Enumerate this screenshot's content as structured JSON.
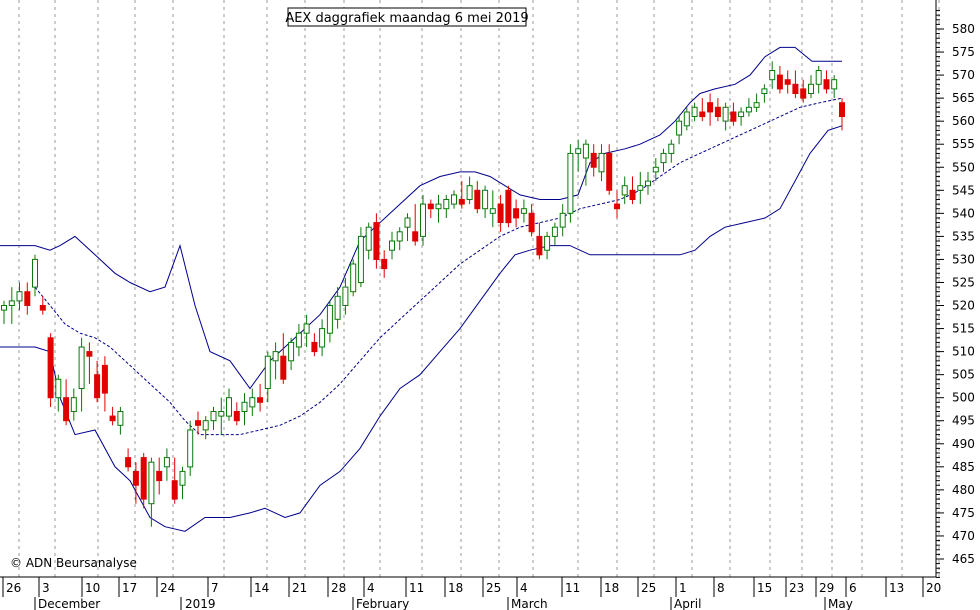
{
  "chart_data": {
    "type": "candlestick",
    "title": "AEX daggrafiek maandag 6 mei 2019",
    "watermark": "© ADN Beursanalyse",
    "ylim": [
      460,
      587
    ],
    "y_ticks": [
      465,
      470,
      475,
      480,
      485,
      490,
      495,
      500,
      505,
      510,
      515,
      520,
      525,
      530,
      535,
      540,
      545,
      550,
      555,
      560,
      565,
      570,
      575,
      580
    ],
    "x_day_labels": [
      "26",
      "3",
      "10",
      "17",
      "24",
      "7",
      "14",
      "21",
      "28",
      "4",
      "11",
      "18",
      "25",
      "4",
      "11",
      "18",
      "25",
      "1",
      "8",
      "15",
      "23",
      "29",
      "6",
      "13",
      "20"
    ],
    "x_month_labels": [
      "December",
      "2019",
      "February",
      "March",
      "April",
      "May"
    ],
    "colors": {
      "up": "#0a7a0a",
      "down": "#e00000",
      "band": "#00008b",
      "grid": "#9a9a9a"
    },
    "candles": [
      [
        519,
        521,
        516,
        520
      ],
      [
        520,
        524,
        516,
        521
      ],
      [
        521,
        525,
        519,
        523
      ],
      [
        523,
        525,
        518,
        520
      ],
      [
        524,
        531,
        522,
        530
      ],
      [
        520,
        522,
        518,
        519
      ],
      [
        513,
        514,
        498,
        500
      ],
      [
        500,
        505,
        497,
        504
      ],
      [
        500,
        504,
        494,
        495
      ],
      [
        497,
        502,
        495,
        500
      ],
      [
        502,
        513,
        497,
        511
      ],
      [
        510,
        512,
        503,
        509
      ],
      [
        505,
        508,
        499,
        500
      ],
      [
        507,
        509,
        497,
        501
      ],
      [
        496,
        498,
        494,
        495
      ],
      [
        494,
        498,
        492,
        497
      ],
      [
        487,
        489,
        484,
        485
      ],
      [
        484,
        486,
        477,
        481
      ],
      [
        487,
        488,
        476,
        478
      ],
      [
        477,
        487,
        472,
        486
      ],
      [
        484,
        487,
        479,
        482
      ],
      [
        485,
        489,
        482,
        487
      ],
      [
        482,
        487,
        477,
        478
      ],
      [
        481,
        485,
        478,
        484
      ],
      [
        485,
        495,
        483,
        493
      ],
      [
        495,
        497,
        492,
        494
      ],
      [
        493,
        496,
        491,
        495
      ],
      [
        495,
        498,
        493,
        497
      ],
      [
        496,
        500,
        492,
        497
      ],
      [
        496,
        502,
        495,
        500
      ],
      [
        497,
        499,
        494,
        495
      ],
      [
        497,
        501,
        494,
        499
      ],
      [
        498,
        502,
        496,
        500
      ],
      [
        500,
        503,
        497,
        499
      ],
      [
        502,
        510,
        499,
        509
      ],
      [
        508,
        512,
        504,
        510
      ],
      [
        509,
        514,
        503,
        504
      ],
      [
        508,
        513,
        506,
        512
      ],
      [
        511,
        516,
        509,
        514
      ],
      [
        514,
        518,
        511,
        516
      ],
      [
        512,
        514,
        509,
        510
      ],
      [
        511,
        517,
        509,
        515
      ],
      [
        514,
        521,
        512,
        520
      ],
      [
        517,
        524,
        515,
        522
      ],
      [
        520,
        526,
        518,
        524
      ],
      [
        523,
        530,
        522,
        529
      ],
      [
        525,
        537,
        524,
        535
      ],
      [
        532,
        538,
        530,
        537
      ],
      [
        538,
        540,
        528,
        530
      ],
      [
        530,
        532,
        526,
        528
      ],
      [
        532,
        536,
        530,
        534
      ],
      [
        534,
        537,
        532,
        536
      ],
      [
        537,
        540,
        534,
        539
      ],
      [
        536,
        542,
        533,
        534
      ],
      [
        535,
        544,
        533,
        542
      ],
      [
        542,
        543,
        539,
        541
      ],
      [
        541,
        544,
        538,
        542
      ],
      [
        541,
        544,
        539,
        543
      ],
      [
        542,
        545,
        541,
        544
      ],
      [
        543,
        547,
        541,
        542
      ],
      [
        543,
        548,
        542,
        546
      ],
      [
        545,
        547,
        540,
        541
      ],
      [
        541,
        546,
        539,
        545
      ],
      [
        540,
        545,
        537,
        541
      ],
      [
        542,
        544,
        536,
        538
      ],
      [
        545,
        546,
        537,
        538
      ],
      [
        541,
        543,
        537,
        539
      ],
      [
        540,
        543,
        538,
        541
      ],
      [
        540,
        542,
        535,
        536
      ],
      [
        535,
        538,
        530,
        531
      ],
      [
        532,
        536,
        530,
        535
      ],
      [
        535,
        538,
        533,
        537
      ],
      [
        537,
        542,
        535,
        540
      ],
      [
        540,
        555,
        538,
        553
      ],
      [
        553,
        556,
        549,
        554
      ],
      [
        552,
        556,
        546,
        555
      ],
      [
        553,
        555,
        548,
        550
      ],
      [
        549,
        555,
        547,
        553
      ],
      [
        553,
        555,
        544,
        545
      ],
      [
        542,
        545,
        539,
        541
      ],
      [
        544,
        548,
        542,
        546
      ],
      [
        545,
        548,
        542,
        543
      ],
      [
        545,
        549,
        542,
        546
      ],
      [
        546,
        549,
        544,
        547
      ],
      [
        549,
        552,
        547,
        550
      ],
      [
        551,
        554,
        549,
        553
      ],
      [
        553,
        556,
        551,
        555
      ],
      [
        557,
        561,
        555,
        560
      ],
      [
        559,
        563,
        558,
        562
      ],
      [
        561,
        564,
        560,
        563
      ],
      [
        562,
        565,
        560,
        561
      ],
      [
        564,
        566,
        559,
        562
      ],
      [
        563,
        565,
        560,
        561
      ],
      [
        560,
        564,
        558,
        563
      ],
      [
        562,
        564,
        559,
        560
      ],
      [
        561,
        563,
        559,
        562
      ],
      [
        562,
        565,
        561,
        563
      ],
      [
        563,
        566,
        562,
        564
      ],
      [
        566,
        568,
        564,
        567
      ],
      [
        569,
        573,
        567,
        571
      ],
      [
        570,
        572,
        566,
        567
      ],
      [
        569,
        571,
        566,
        568
      ],
      [
        568,
        571,
        565,
        566
      ],
      [
        567,
        569,
        564,
        565
      ],
      [
        566,
        570,
        565,
        568
      ],
      [
        568,
        572,
        566,
        571
      ],
      [
        569,
        571,
        566,
        567
      ],
      [
        567,
        570,
        565,
        569
      ],
      [
        564,
        565,
        558,
        561
      ]
    ],
    "band_upper": [
      [
        0,
        533
      ],
      [
        35,
        533
      ],
      [
        50,
        532
      ],
      [
        60,
        533
      ],
      [
        75,
        535
      ],
      [
        95,
        531
      ],
      [
        115,
        527
      ],
      [
        130,
        525
      ],
      [
        150,
        523
      ],
      [
        165,
        524
      ],
      [
        180,
        533
      ],
      [
        195,
        520
      ],
      [
        210,
        510
      ],
      [
        230,
        508
      ],
      [
        250,
        502
      ],
      [
        270,
        508
      ],
      [
        285,
        511
      ],
      [
        300,
        514
      ],
      [
        320,
        518
      ],
      [
        340,
        524
      ],
      [
        360,
        534
      ],
      [
        380,
        538
      ],
      [
        400,
        542
      ],
      [
        420,
        546
      ],
      [
        440,
        548
      ],
      [
        460,
        549
      ],
      [
        475,
        549
      ],
      [
        490,
        548
      ],
      [
        505,
        546
      ],
      [
        520,
        544
      ],
      [
        540,
        543
      ],
      [
        560,
        543
      ],
      [
        578,
        544
      ],
      [
        590,
        551
      ],
      [
        605,
        553
      ],
      [
        625,
        554
      ],
      [
        640,
        555
      ],
      [
        660,
        557
      ],
      [
        675,
        560
      ],
      [
        690,
        564
      ],
      [
        700,
        566
      ],
      [
        715,
        567
      ],
      [
        735,
        568
      ],
      [
        750,
        570
      ],
      [
        765,
        574
      ],
      [
        780,
        576
      ],
      [
        795,
        576
      ],
      [
        812,
        573
      ],
      [
        828,
        573
      ],
      [
        842,
        573
      ]
    ],
    "band_middle": [
      [
        35,
        524
      ],
      [
        50,
        520
      ],
      [
        65,
        516
      ],
      [
        80,
        514
      ],
      [
        95,
        513
      ],
      [
        110,
        511
      ],
      [
        125,
        508
      ],
      [
        140,
        505
      ],
      [
        155,
        502
      ],
      [
        170,
        499
      ],
      [
        185,
        495
      ],
      [
        200,
        492
      ],
      [
        220,
        492
      ],
      [
        240,
        492
      ],
      [
        260,
        493
      ],
      [
        280,
        494
      ],
      [
        300,
        496
      ],
      [
        320,
        499
      ],
      [
        340,
        503
      ],
      [
        360,
        508
      ],
      [
        380,
        513
      ],
      [
        400,
        517
      ],
      [
        420,
        521
      ],
      [
        440,
        525
      ],
      [
        460,
        529
      ],
      [
        480,
        532
      ],
      [
        500,
        535
      ],
      [
        520,
        537
      ],
      [
        540,
        538
      ],
      [
        560,
        539
      ],
      [
        580,
        541
      ],
      [
        600,
        542
      ],
      [
        620,
        543
      ],
      [
        640,
        545
      ],
      [
        660,
        548
      ],
      [
        680,
        551
      ],
      [
        700,
        553
      ],
      [
        720,
        555
      ],
      [
        740,
        557
      ],
      [
        760,
        559
      ],
      [
        780,
        561
      ],
      [
        800,
        563
      ],
      [
        820,
        564
      ],
      [
        842,
        565
      ]
    ],
    "band_lower": [
      [
        0,
        511
      ],
      [
        35,
        511
      ],
      [
        50,
        510
      ],
      [
        60,
        500
      ],
      [
        75,
        492
      ],
      [
        95,
        493
      ],
      [
        115,
        485
      ],
      [
        130,
        482
      ],
      [
        150,
        474
      ],
      [
        165,
        472
      ],
      [
        185,
        471
      ],
      [
        205,
        474
      ],
      [
        230,
        474
      ],
      [
        250,
        475
      ],
      [
        265,
        476
      ],
      [
        285,
        474
      ],
      [
        300,
        475
      ],
      [
        320,
        481
      ],
      [
        340,
        484
      ],
      [
        360,
        489
      ],
      [
        380,
        496
      ],
      [
        400,
        502
      ],
      [
        420,
        505
      ],
      [
        440,
        510
      ],
      [
        460,
        515
      ],
      [
        480,
        521
      ],
      [
        500,
        527
      ],
      [
        515,
        531
      ],
      [
        530,
        532
      ],
      [
        550,
        533
      ],
      [
        570,
        533
      ],
      [
        590,
        531
      ],
      [
        615,
        531
      ],
      [
        640,
        531
      ],
      [
        660,
        531
      ],
      [
        680,
        531
      ],
      [
        695,
        532
      ],
      [
        710,
        535
      ],
      [
        725,
        537
      ],
      [
        745,
        538
      ],
      [
        765,
        539
      ],
      [
        780,
        541
      ],
      [
        795,
        547
      ],
      [
        810,
        553
      ],
      [
        828,
        558
      ],
      [
        842,
        559
      ]
    ]
  }
}
